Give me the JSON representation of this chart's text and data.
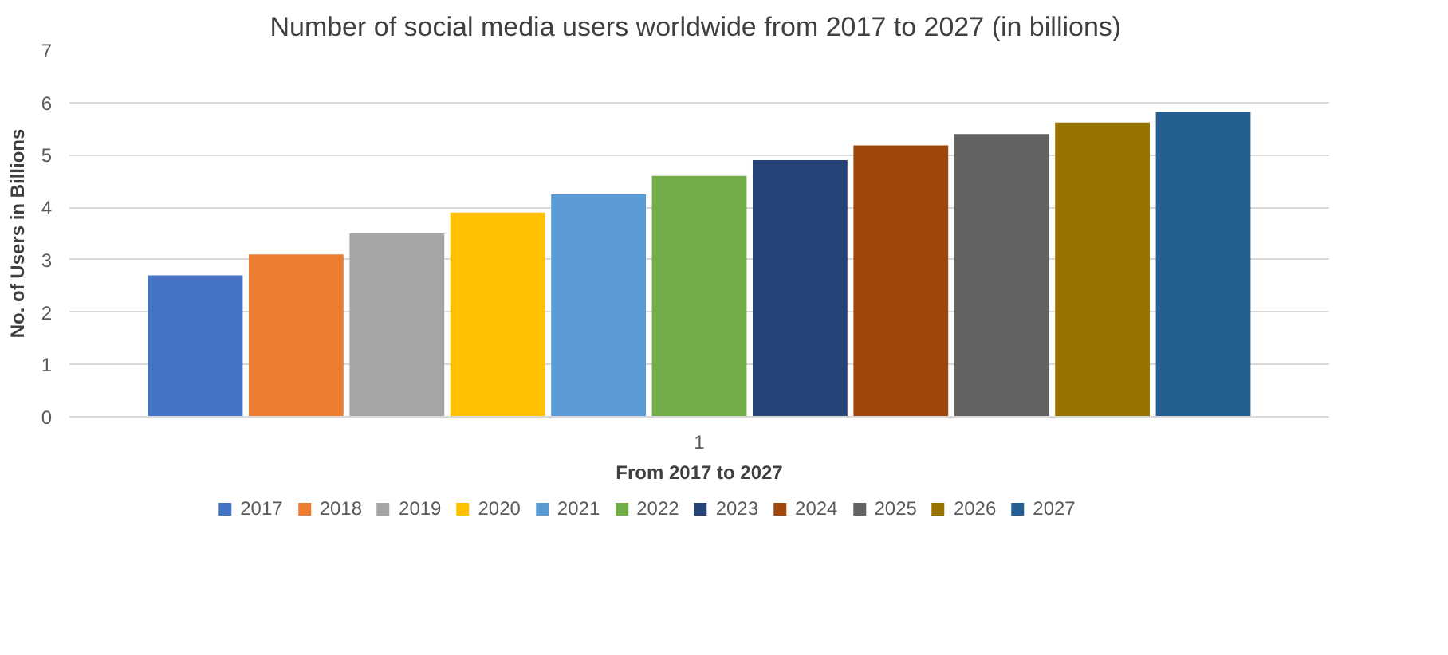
{
  "chart_data": {
    "type": "bar",
    "title": "Number of social media users worldwide from 2017 to 2027  (in billions)",
    "xlabel": "From 2017 to 2027",
    "ylabel": "No. of Users in Billions",
    "categories": [
      "1"
    ],
    "series": [
      {
        "name": "2017",
        "color": "#4472c4",
        "values": [
          2.7
        ]
      },
      {
        "name": "2018",
        "color": "#ed7d31",
        "values": [
          3.1
        ]
      },
      {
        "name": "2019",
        "color": "#a5a5a5",
        "values": [
          3.5
        ]
      },
      {
        "name": "2020",
        "color": "#ffc000",
        "values": [
          3.9
        ]
      },
      {
        "name": "2021",
        "color": "#5b9bd5",
        "values": [
          4.25
        ]
      },
      {
        "name": "2022",
        "color": "#70ad47",
        "values": [
          4.6
        ]
      },
      {
        "name": "2023",
        "color": "#264478",
        "values": [
          4.9
        ]
      },
      {
        "name": "2024",
        "color": "#9e480e",
        "values": [
          5.18
        ]
      },
      {
        "name": "2025",
        "color": "#636363",
        "values": [
          5.4
        ]
      },
      {
        "name": "2026",
        "color": "#997300",
        "values": [
          5.62
        ]
      },
      {
        "name": "2027",
        "color": "#255e91",
        "values": [
          5.82
        ]
      }
    ],
    "ylim": [
      0,
      7
    ],
    "yticks": [
      0,
      1,
      2,
      3,
      4,
      5,
      6,
      7
    ],
    "grid": "y",
    "legend": "bottom"
  }
}
